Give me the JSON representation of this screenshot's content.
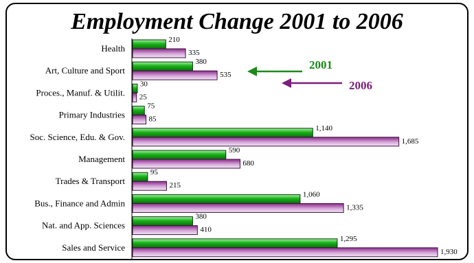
{
  "chart_data": {
    "type": "bar",
    "orientation": "horizontal",
    "title": "Employment Change 2001 to 2006",
    "categories": [
      "Health",
      "Art, Culture and Sport",
      "Proces., Manuf. & Utilit.",
      "Primary Industries",
      "Soc. Science, Edu. & Gov.",
      "Management",
      "Trades & Transport",
      "Bus., Finance and Admin",
      "Nat. and App. Sciences",
      "Sales and Service"
    ],
    "series": [
      {
        "name": "2001",
        "color": "#1a8c1a",
        "values": [
          210,
          380,
          30,
          75,
          1140,
          590,
          95,
          1060,
          380,
          1295
        ],
        "value_labels": [
          "210",
          "380",
          "30",
          "75",
          "1,140",
          "590",
          "95",
          "1,060",
          "380",
          "1,295"
        ]
      },
      {
        "name": "2006",
        "color": "#8c2a8c",
        "values": [
          335,
          535,
          25,
          85,
          1685,
          680,
          215,
          1335,
          410,
          1930
        ],
        "value_labels": [
          "335",
          "535",
          "25",
          "85",
          "1,685",
          "680",
          "215",
          "1,335",
          "410",
          "1,930"
        ]
      }
    ],
    "xlim": [
      0,
      1930
    ],
    "grid": false,
    "legend": "top-right, arrows pointing left"
  }
}
